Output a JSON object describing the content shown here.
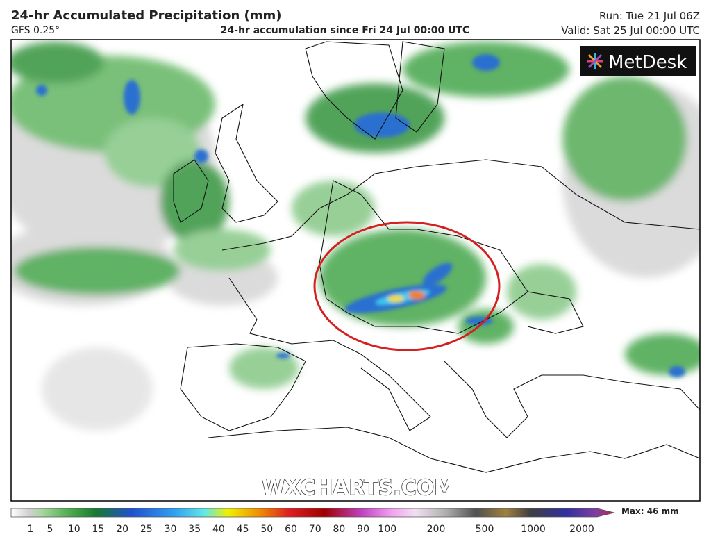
{
  "header": {
    "title": "24-hr Accumulated Precipitation (mm)",
    "model": "GFS 0.25°",
    "subtitle": "24-hr accumulation since Fri 24 Jul 00:00 UTC",
    "run": "Run: Tue 21 Jul 06Z",
    "valid": "Valid: Sat 25 Jul 00:00 UTC"
  },
  "map": {
    "logo": "MetDesk",
    "watermark": "WXCHARTS.COM"
  },
  "legend": {
    "max": "Max: 46 mm",
    "labels": [
      1,
      5,
      10,
      15,
      20,
      25,
      30,
      35,
      40,
      45,
      50,
      60,
      70,
      80,
      90,
      100,
      200,
      500,
      1000,
      2000
    ]
  }
}
